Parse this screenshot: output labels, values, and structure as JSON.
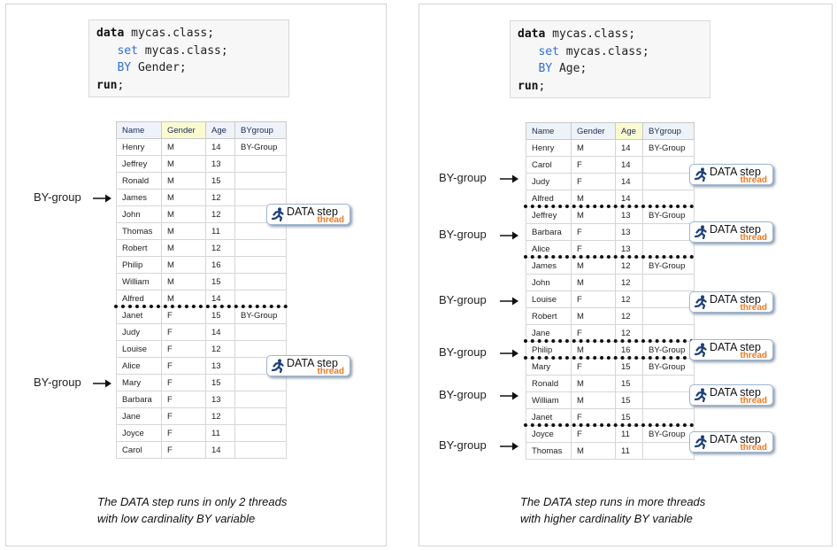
{
  "left": {
    "code": {
      "line1_kw": "data",
      "line1_rest": " mycas.class;",
      "line2_kw": "set",
      "line2_rest": " mycas.class;",
      "line3_kw": "BY",
      "line3_rest": " Gender;",
      "line4_kw": "run",
      "line4_rest": ";"
    },
    "columns": [
      "Name",
      "Gender",
      "Age",
      "BYgroup"
    ],
    "highlight_column": "Gender",
    "rows": [
      [
        "Henry",
        "M",
        "14",
        "BY-Group"
      ],
      [
        "Jeffrey",
        "M",
        "13",
        ""
      ],
      [
        "Ronald",
        "M",
        "15",
        ""
      ],
      [
        "James",
        "M",
        "12",
        ""
      ],
      [
        "John",
        "M",
        "12",
        ""
      ],
      [
        "Thomas",
        "M",
        "11",
        ""
      ],
      [
        "Robert",
        "M",
        "12",
        ""
      ],
      [
        "Philip",
        "M",
        "16",
        ""
      ],
      [
        "William",
        "M",
        "15",
        ""
      ],
      [
        "Alfred",
        "M",
        "14",
        ""
      ],
      [
        "Janet",
        "F",
        "15",
        "BY-Group"
      ],
      [
        "Judy",
        "F",
        "14",
        ""
      ],
      [
        "Louise",
        "F",
        "12",
        ""
      ],
      [
        "Alice",
        "F",
        "13",
        ""
      ],
      [
        "Mary",
        "F",
        "15",
        ""
      ],
      [
        "Barbara",
        "F",
        "13",
        ""
      ],
      [
        "Jane",
        "F",
        "12",
        ""
      ],
      [
        "Joyce",
        "F",
        "11",
        ""
      ],
      [
        "Carol",
        "F",
        "14",
        ""
      ]
    ],
    "group_breaks_after_row": [
      9
    ],
    "by_labels": [
      {
        "text": "BY-group",
        "row": 3
      },
      {
        "text": "BY-group",
        "row": 14
      }
    ],
    "threads": [
      {
        "label": "DATA step",
        "sub": "thread",
        "row": 4
      },
      {
        "label": "DATA step",
        "sub": "thread",
        "row": 13
      }
    ],
    "caption_line1": "The DATA step runs  in only 2 threads",
    "caption_line2": "with low cardinality BY variable"
  },
  "right": {
    "code": {
      "line1_kw": "data",
      "line1_rest": " mycas.class;",
      "line2_kw": "set",
      "line2_rest": " mycas.class;",
      "line3_kw": "BY",
      "line3_rest": " Age;",
      "line4_kw": "run",
      "line4_rest": ";"
    },
    "columns": [
      "Name",
      "Gender",
      "Age",
      "BYgroup"
    ],
    "highlight_column": "Age",
    "rows": [
      [
        "Henry",
        "M",
        "14",
        "BY-Group"
      ],
      [
        "Carol",
        "F",
        "14",
        ""
      ],
      [
        "Judy",
        "F",
        "14",
        ""
      ],
      [
        "Alfred",
        "M",
        "14",
        ""
      ],
      [
        "Jeffrey",
        "M",
        "13",
        "BY-Group"
      ],
      [
        "Barbara",
        "F",
        "13",
        ""
      ],
      [
        "Alice",
        "F",
        "13",
        ""
      ],
      [
        "James",
        "M",
        "12",
        "BY-Group"
      ],
      [
        "John",
        "M",
        "12",
        ""
      ],
      [
        "Louise",
        "F",
        "12",
        ""
      ],
      [
        "Robert",
        "M",
        "12",
        ""
      ],
      [
        "Jane",
        "F",
        "12",
        ""
      ],
      [
        "Philip",
        "M",
        "16",
        "BY-Group"
      ],
      [
        "Mary",
        "F",
        "15",
        "BY-Group"
      ],
      [
        "Ronald",
        "M",
        "15",
        ""
      ],
      [
        "William",
        "M",
        "15",
        ""
      ],
      [
        "Janet",
        "F",
        "15",
        ""
      ],
      [
        "Joyce",
        "F",
        "11",
        "BY-Group"
      ],
      [
        "Thomas",
        "M",
        "11",
        ""
      ]
    ],
    "group_breaks_after_row": [
      3,
      6,
      11,
      12,
      16
    ],
    "by_labels": [
      {
        "text": "BY-group",
        "row": 1.8
      },
      {
        "text": "BY-group",
        "row": 5.2
      },
      {
        "text": "BY-group",
        "row": 9.1
      },
      {
        "text": "BY-group",
        "row": 12.2
      },
      {
        "text": "BY-group",
        "row": 14.7
      },
      {
        "text": "BY-group",
        "row": 17.7
      }
    ],
    "threads": [
      {
        "label": "DATA step",
        "sub": "thread",
        "row": 1.6
      },
      {
        "label": "DATA step",
        "sub": "thread",
        "row": 5.0
      },
      {
        "label": "DATA step",
        "sub": "thread",
        "row": 9.2
      },
      {
        "label": "DATA step",
        "sub": "thread",
        "row": 12.0
      },
      {
        "label": "DATA step",
        "sub": "thread",
        "row": 14.7
      },
      {
        "label": "DATA step",
        "sub": "thread",
        "row": 17.5
      }
    ],
    "caption_line1": "The DATA step runs  in more threads",
    "caption_line2": "with higher cardinality BY variable"
  },
  "colors": {
    "keyword_blue": "#2f6fd0",
    "thread_orange": "#ee7a22",
    "highlight_yellow": "#fafad0"
  }
}
